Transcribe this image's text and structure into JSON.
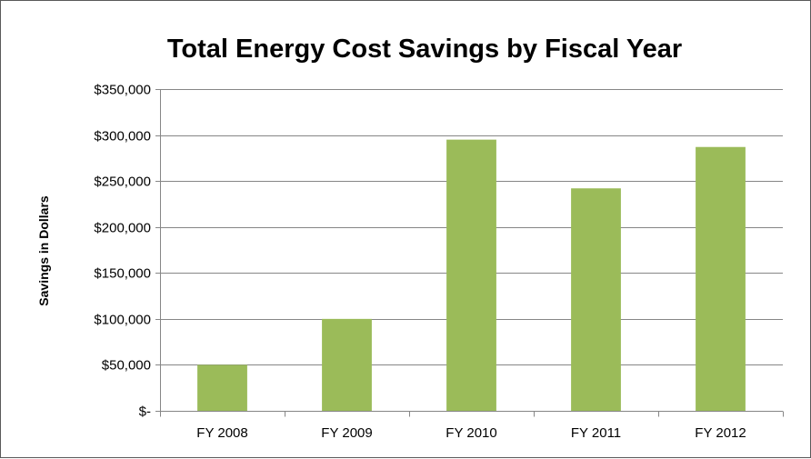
{
  "chart_data": {
    "type": "bar",
    "title": "Total Energy Cost Savings by Fiscal Year",
    "xlabel": "",
    "ylabel": "Savings in Dollars",
    "categories": [
      "FY 2008",
      "FY 2009",
      "FY 2010",
      "FY 2011",
      "FY 2012"
    ],
    "values": [
      50000,
      100000,
      295000,
      242000,
      287000
    ],
    "ylim": [
      0,
      350000
    ],
    "yticks": [
      0,
      50000,
      100000,
      150000,
      200000,
      250000,
      300000,
      350000
    ],
    "ytick_labels": [
      "$-",
      "$50,000",
      "$100,000",
      "$150,000",
      "$200,000",
      "$250,000",
      "$300,000",
      "$350,000"
    ],
    "grid": true,
    "bar_color": "#9bbb59",
    "grid_color": "#868686"
  }
}
